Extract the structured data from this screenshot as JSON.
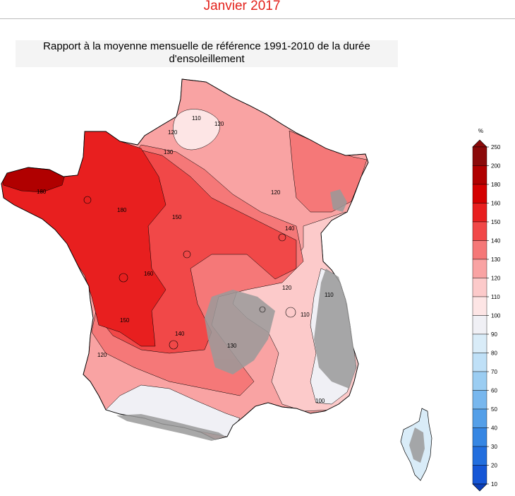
{
  "header": {
    "title": "Janvier 2017"
  },
  "map": {
    "title_line1": "Rapport à la moyenne mensuelle de référence 1991-2010 de la durée",
    "title_line2": "d'ensoleillement",
    "contour_labels": [
      "110",
      "120",
      "120",
      "130",
      "120",
      "180",
      "180",
      "150",
      "140",
      "160",
      "120",
      "110",
      "110",
      "150",
      "140",
      "130",
      "120",
      "100"
    ]
  },
  "legend": {
    "unit": "%",
    "levels": [
      {
        "value": "250",
        "color": "#8b0a0a"
      },
      {
        "value": "200",
        "color": "#b00000"
      },
      {
        "value": "180",
        "color": "#d40000"
      },
      {
        "value": "160",
        "color": "#e81f1f"
      },
      {
        "value": "150",
        "color": "#f14848"
      },
      {
        "value": "140",
        "color": "#f57878"
      },
      {
        "value": "130",
        "color": "#f9a3a3"
      },
      {
        "value": "120",
        "color": "#fccaca"
      },
      {
        "value": "110",
        "color": "#fde5e5"
      },
      {
        "value": "100",
        "color": "#f0f0f5"
      },
      {
        "value": "90",
        "color": "#d9ecf8"
      },
      {
        "value": "80",
        "color": "#bfe0f7"
      },
      {
        "value": "70",
        "color": "#9bcdf2"
      },
      {
        "value": "60",
        "color": "#78b7ee"
      },
      {
        "value": "50",
        "color": "#549fe8"
      },
      {
        "value": "40",
        "color": "#3686e3"
      },
      {
        "value": "30",
        "color": "#226ede"
      },
      {
        "value": "20",
        "color": "#1556d6"
      },
      {
        "value": "10",
        "color": "#0c3fb8"
      }
    ]
  }
}
